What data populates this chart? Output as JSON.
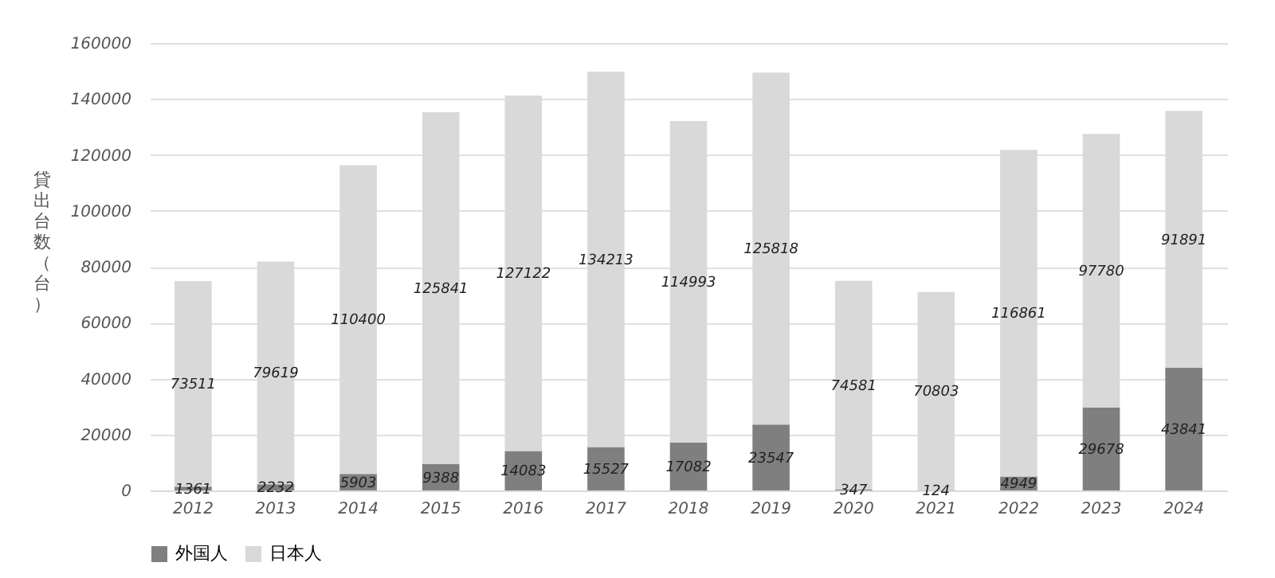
{
  "chart_data": {
    "type": "bar",
    "stacked": true,
    "ylabel": "貸出台数（台）",
    "categories": [
      "2012",
      "2013",
      "2014",
      "2015",
      "2016",
      "2017",
      "2018",
      "2019",
      "2020",
      "2021",
      "2022",
      "2023",
      "2024"
    ],
    "series": [
      {
        "name": "外国人",
        "color": "#7f7f7f",
        "values": [
          1361,
          2232,
          5903,
          9388,
          14083,
          15527,
          17082,
          23547,
          347,
          124,
          4949,
          29678,
          43841
        ]
      },
      {
        "name": "日本人",
        "color": "#d9d9d9",
        "values": [
          73511,
          79619,
          110400,
          125841,
          127122,
          134213,
          114993,
          125818,
          74581,
          70803,
          116861,
          97780,
          91891
        ]
      }
    ],
    "ylim": [
      0,
      160000
    ],
    "yticks": [
      0,
      20000,
      40000,
      60000,
      80000,
      100000,
      120000,
      140000,
      160000
    ],
    "grid": "y",
    "legend": "bottom",
    "data_labels": true
  }
}
